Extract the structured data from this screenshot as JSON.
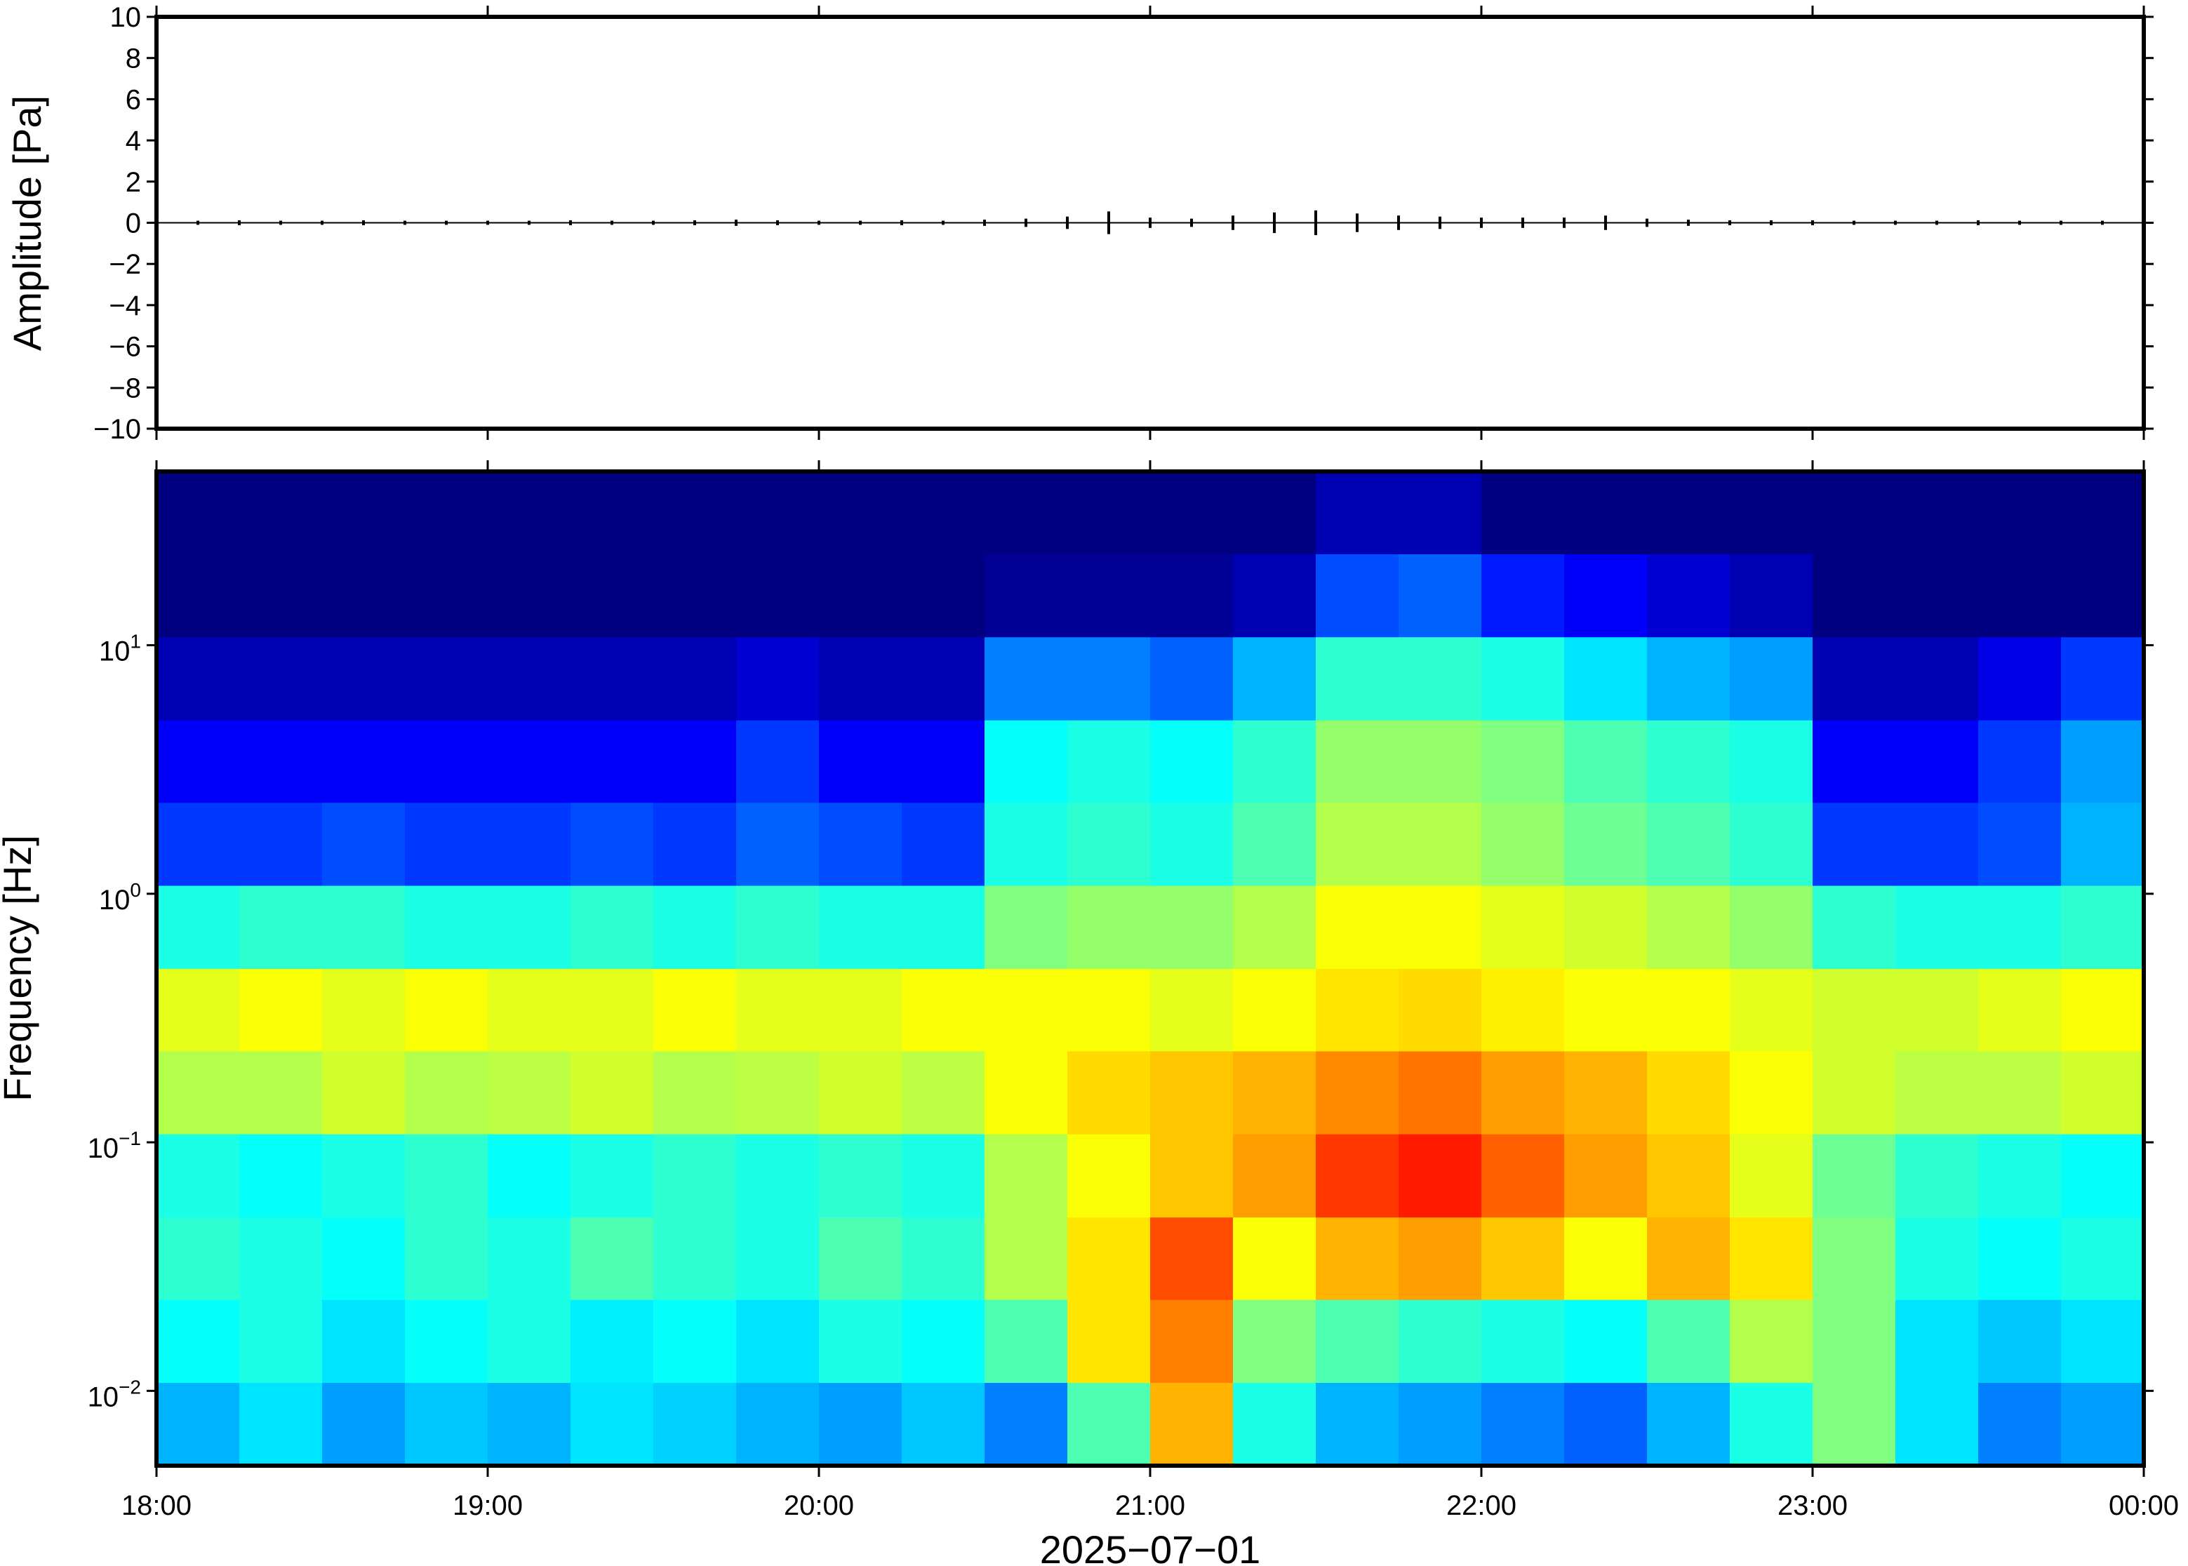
{
  "chart_data": [
    {
      "type": "line",
      "ylabel": "Amplitude [Pa]",
      "color": "#000000",
      "xlim": [
        18,
        24
      ],
      "xticks": [
        18,
        19,
        20,
        21,
        22,
        23,
        24
      ],
      "ylim": [
        -10,
        10
      ],
      "yticks": [
        {
          "value": -10,
          "label": "−10"
        },
        {
          "value": -8,
          "label": "−8"
        },
        {
          "value": -6,
          "label": "−6"
        },
        {
          "value": -4,
          "label": "−4"
        },
        {
          "value": -2,
          "label": "−2"
        },
        0,
        2,
        4,
        6,
        8,
        10
      ],
      "x": [
        18,
        18.125,
        18.25,
        18.375,
        18.5,
        18.625,
        18.75,
        18.875,
        19,
        19.125,
        19.25,
        19.375,
        19.5,
        19.625,
        19.75,
        19.875,
        20,
        20.125,
        20.25,
        20.375,
        20.5,
        20.625,
        20.75,
        20.875,
        21,
        21.125,
        21.25,
        21.375,
        21.5,
        21.625,
        21.75,
        21.875,
        22,
        22.125,
        22.25,
        22.375,
        22.5,
        22.625,
        22.75,
        22.875,
        23,
        23.125,
        23.25,
        23.375,
        23.5,
        23.625,
        23.75,
        23.875,
        24
      ],
      "values": [
        0.1,
        0.1,
        0.12,
        0.1,
        0.1,
        0.12,
        0.1,
        0.1,
        0.1,
        0.1,
        0.12,
        0.1,
        0.1,
        0.12,
        0.15,
        0.12,
        0.1,
        0.1,
        0.12,
        0.1,
        0.15,
        0.2,
        0.3,
        0.55,
        0.25,
        0.2,
        0.35,
        0.5,
        0.6,
        0.45,
        0.35,
        0.3,
        0.25,
        0.25,
        0.25,
        0.35,
        0.2,
        0.15,
        0.12,
        0.12,
        0.12,
        0.1,
        0.1,
        0.1,
        0.12,
        0.1,
        0.1,
        0.1,
        0.1
      ]
    },
    {
      "type": "heatmap",
      "ylabel": "Frequency [Hz]",
      "xlabel": "2025−07−01",
      "colormap": "jet",
      "log_y": true,
      "xlim": [
        18,
        24
      ],
      "xticks": [
        {
          "value": 18,
          "label": "18:00"
        },
        {
          "value": 19,
          "label": "19:00"
        },
        {
          "value": 20,
          "label": "20:00"
        },
        {
          "value": 21,
          "label": "21:00"
        },
        {
          "value": 22,
          "label": "22:00"
        },
        {
          "value": 23,
          "label": "23:00"
        },
        {
          "value": 24,
          "label": "00:00"
        }
      ],
      "ylim": [
        0.005,
        50
      ],
      "yticks": [
        {
          "value": 0.01,
          "label": "10",
          "exponent": "−2"
        },
        {
          "value": 0.1,
          "label": "10",
          "exponent": "−1"
        },
        {
          "value": 1,
          "label": "10",
          "exponent": "0"
        },
        {
          "value": 10,
          "label": "10",
          "exponent": "1"
        }
      ],
      "x_bins": [
        18,
        18.25,
        18.5,
        18.75,
        19,
        19.25,
        19.5,
        19.75,
        20,
        20.25,
        20.5,
        20.75,
        21,
        21.25,
        21.5,
        21.75,
        22,
        22.25,
        22.5,
        22.75,
        23,
        23.25,
        23.5,
        23.75,
        24
      ],
      "y_bins": [
        0.005,
        0.0108,
        0.0233,
        0.05,
        0.108,
        0.233,
        0.5,
        1.08,
        2.33,
        5,
        10.8,
        23.3,
        50
      ],
      "z": [
        [
          0.3,
          0.35,
          0.28,
          0.32,
          0.3,
          0.35,
          0.33,
          0.3,
          0.28,
          0.32,
          0.25,
          0.45,
          0.7,
          0.4,
          0.3,
          0.28,
          0.25,
          0.22,
          0.3,
          0.4,
          0.5,
          0.35,
          0.25,
          0.28
        ],
        [
          0.38,
          0.4,
          0.35,
          0.38,
          0.4,
          0.36,
          0.38,
          0.35,
          0.4,
          0.38,
          0.45,
          0.65,
          0.75,
          0.5,
          0.45,
          0.42,
          0.4,
          0.38,
          0.45,
          0.55,
          0.5,
          0.35,
          0.32,
          0.35
        ],
        [
          0.42,
          0.4,
          0.38,
          0.42,
          0.4,
          0.45,
          0.42,
          0.4,
          0.45,
          0.42,
          0.55,
          0.65,
          0.8,
          0.62,
          0.7,
          0.72,
          0.68,
          0.62,
          0.7,
          0.65,
          0.5,
          0.4,
          0.38,
          0.4
        ],
        [
          0.4,
          0.38,
          0.4,
          0.42,
          0.38,
          0.4,
          0.42,
          0.4,
          0.42,
          0.4,
          0.55,
          0.62,
          0.68,
          0.72,
          0.82,
          0.85,
          0.78,
          0.72,
          0.68,
          0.6,
          0.48,
          0.42,
          0.4,
          0.38
        ],
        [
          0.55,
          0.55,
          0.58,
          0.55,
          0.56,
          0.58,
          0.55,
          0.56,
          0.58,
          0.56,
          0.62,
          0.66,
          0.68,
          0.7,
          0.74,
          0.76,
          0.72,
          0.7,
          0.66,
          0.62,
          0.58,
          0.56,
          0.56,
          0.58
        ],
        [
          0.6,
          0.62,
          0.6,
          0.62,
          0.6,
          0.6,
          0.62,
          0.6,
          0.6,
          0.62,
          0.62,
          0.62,
          0.6,
          0.62,
          0.65,
          0.66,
          0.64,
          0.62,
          0.62,
          0.6,
          0.58,
          0.58,
          0.6,
          0.62
        ],
        [
          0.4,
          0.42,
          0.42,
          0.4,
          0.4,
          0.42,
          0.4,
          0.42,
          0.4,
          0.4,
          0.5,
          0.52,
          0.52,
          0.55,
          0.62,
          0.62,
          0.6,
          0.58,
          0.55,
          0.52,
          0.42,
          0.4,
          0.4,
          0.42
        ],
        [
          0.18,
          0.18,
          0.2,
          0.18,
          0.18,
          0.2,
          0.18,
          0.22,
          0.2,
          0.18,
          0.4,
          0.42,
          0.4,
          0.45,
          0.55,
          0.55,
          0.52,
          0.48,
          0.45,
          0.42,
          0.18,
          0.18,
          0.2,
          0.3
        ],
        [
          0.12,
          0.12,
          0.12,
          0.12,
          0.12,
          0.12,
          0.12,
          0.18,
          0.12,
          0.12,
          0.38,
          0.4,
          0.38,
          0.42,
          0.52,
          0.52,
          0.5,
          0.45,
          0.42,
          0.4,
          0.12,
          0.12,
          0.18,
          0.28
        ],
        [
          0.05,
          0.05,
          0.05,
          0.05,
          0.05,
          0.05,
          0.05,
          0.08,
          0.05,
          0.05,
          0.25,
          0.25,
          0.22,
          0.3,
          0.42,
          0.42,
          0.4,
          0.35,
          0.3,
          0.28,
          0.05,
          0.05,
          0.1,
          0.18
        ],
        [
          0,
          0,
          0,
          0,
          0,
          0,
          0,
          0,
          0,
          0,
          0.02,
          0.02,
          0.02,
          0.05,
          0.2,
          0.22,
          0.15,
          0.12,
          0.08,
          0.05,
          0,
          0,
          0,
          0
        ],
        [
          0,
          0,
          0,
          0,
          0,
          0,
          0,
          0,
          0,
          0,
          0,
          0,
          0,
          0,
          0.05,
          0.05,
          0,
          0,
          0,
          0,
          0,
          0,
          0,
          0
        ]
      ]
    }
  ]
}
